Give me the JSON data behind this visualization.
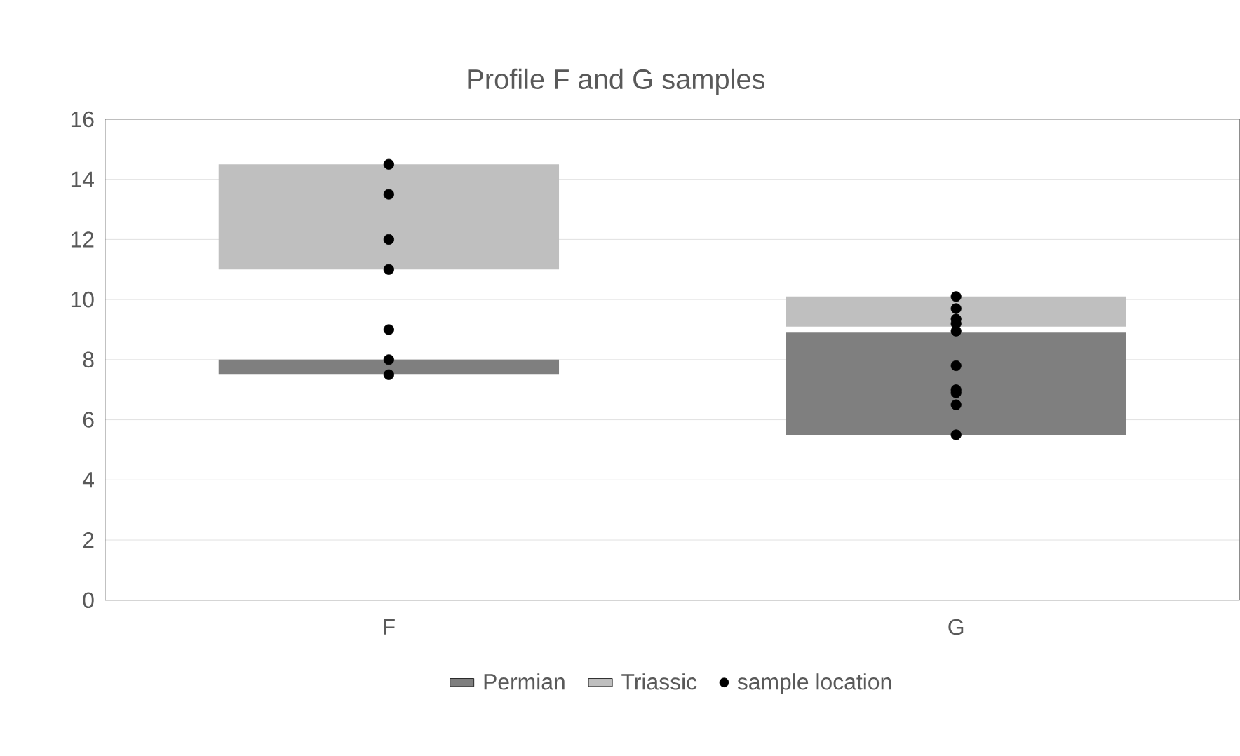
{
  "chart_data": {
    "type": "bar",
    "title": "Profile F and G samples",
    "categories": [
      "F",
      "G"
    ],
    "series": [
      {
        "name": "Permian",
        "color": "#7f7f7f",
        "base": [
          7.5,
          5.5
        ],
        "values": [
          0.5,
          3.4
        ]
      },
      {
        "name": "Triassic",
        "color": "#bfbfbf",
        "base": [
          11,
          9.1
        ],
        "values": [
          3.5,
          1.0
        ]
      },
      {
        "name": "sample location",
        "type": "scatter",
        "color": "#000000",
        "x": [
          "F",
          "F",
          "F",
          "F",
          "F",
          "F",
          "F",
          "G",
          "G",
          "G",
          "G",
          "G",
          "G",
          "G",
          "G",
          "G",
          "G"
        ],
        "values": [
          14.5,
          13.5,
          12,
          11,
          9,
          8,
          7.5,
          10.1,
          9.7,
          9.35,
          9.2,
          8.95,
          7.8,
          7.0,
          6.9,
          6.5,
          5.5
        ]
      }
    ],
    "ylim": [
      0,
      16
    ],
    "yticks": [
      0,
      2,
      4,
      6,
      8,
      10,
      12,
      14,
      16
    ],
    "grid": "y",
    "legend": "bottom"
  }
}
